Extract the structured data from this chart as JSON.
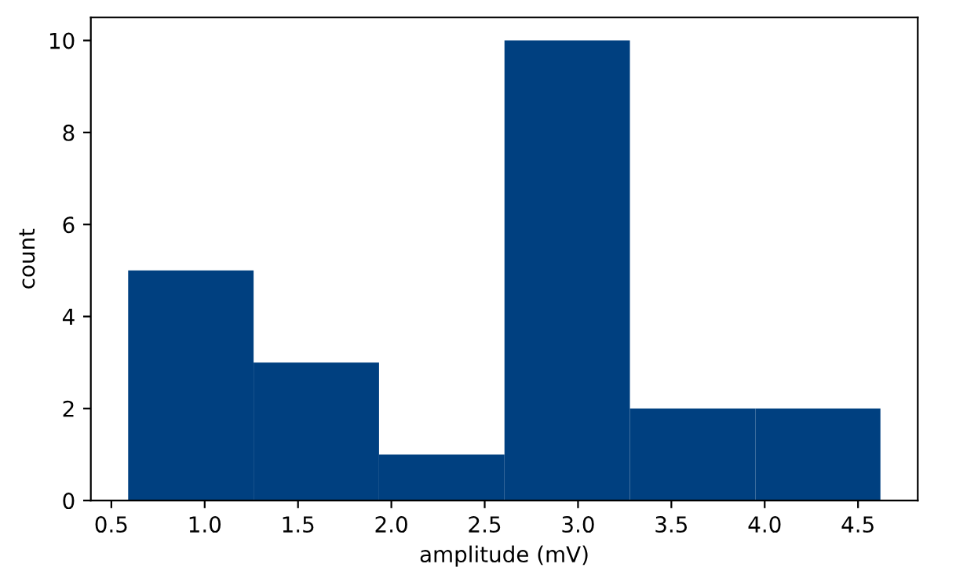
{
  "chart_data": {
    "type": "histogram",
    "xlabel": "amplitude (mV)",
    "ylabel": "count",
    "bins": [
      0.59,
      1.262,
      1.934,
      2.606,
      3.278,
      3.95,
      4.62
    ],
    "values": [
      5,
      3,
      1,
      10,
      2,
      2
    ],
    "color": "#004080",
    "xlim": [
      0.39,
      4.82
    ],
    "ylim": [
      0,
      10.5
    ],
    "xticks": [
      {
        "value": 0.5,
        "label": "0.5"
      },
      {
        "value": 1.0,
        "label": "1.0"
      },
      {
        "value": 1.5,
        "label": "1.5"
      },
      {
        "value": 2.0,
        "label": "2.0"
      },
      {
        "value": 2.5,
        "label": "2.5"
      },
      {
        "value": 3.0,
        "label": "3.0"
      },
      {
        "value": 3.5,
        "label": "3.5"
      },
      {
        "value": 4.0,
        "label": "4.0"
      },
      {
        "value": 4.5,
        "label": "4.5"
      }
    ],
    "yticks": [
      0,
      2,
      4,
      6,
      8,
      10
    ],
    "grid": false
  }
}
